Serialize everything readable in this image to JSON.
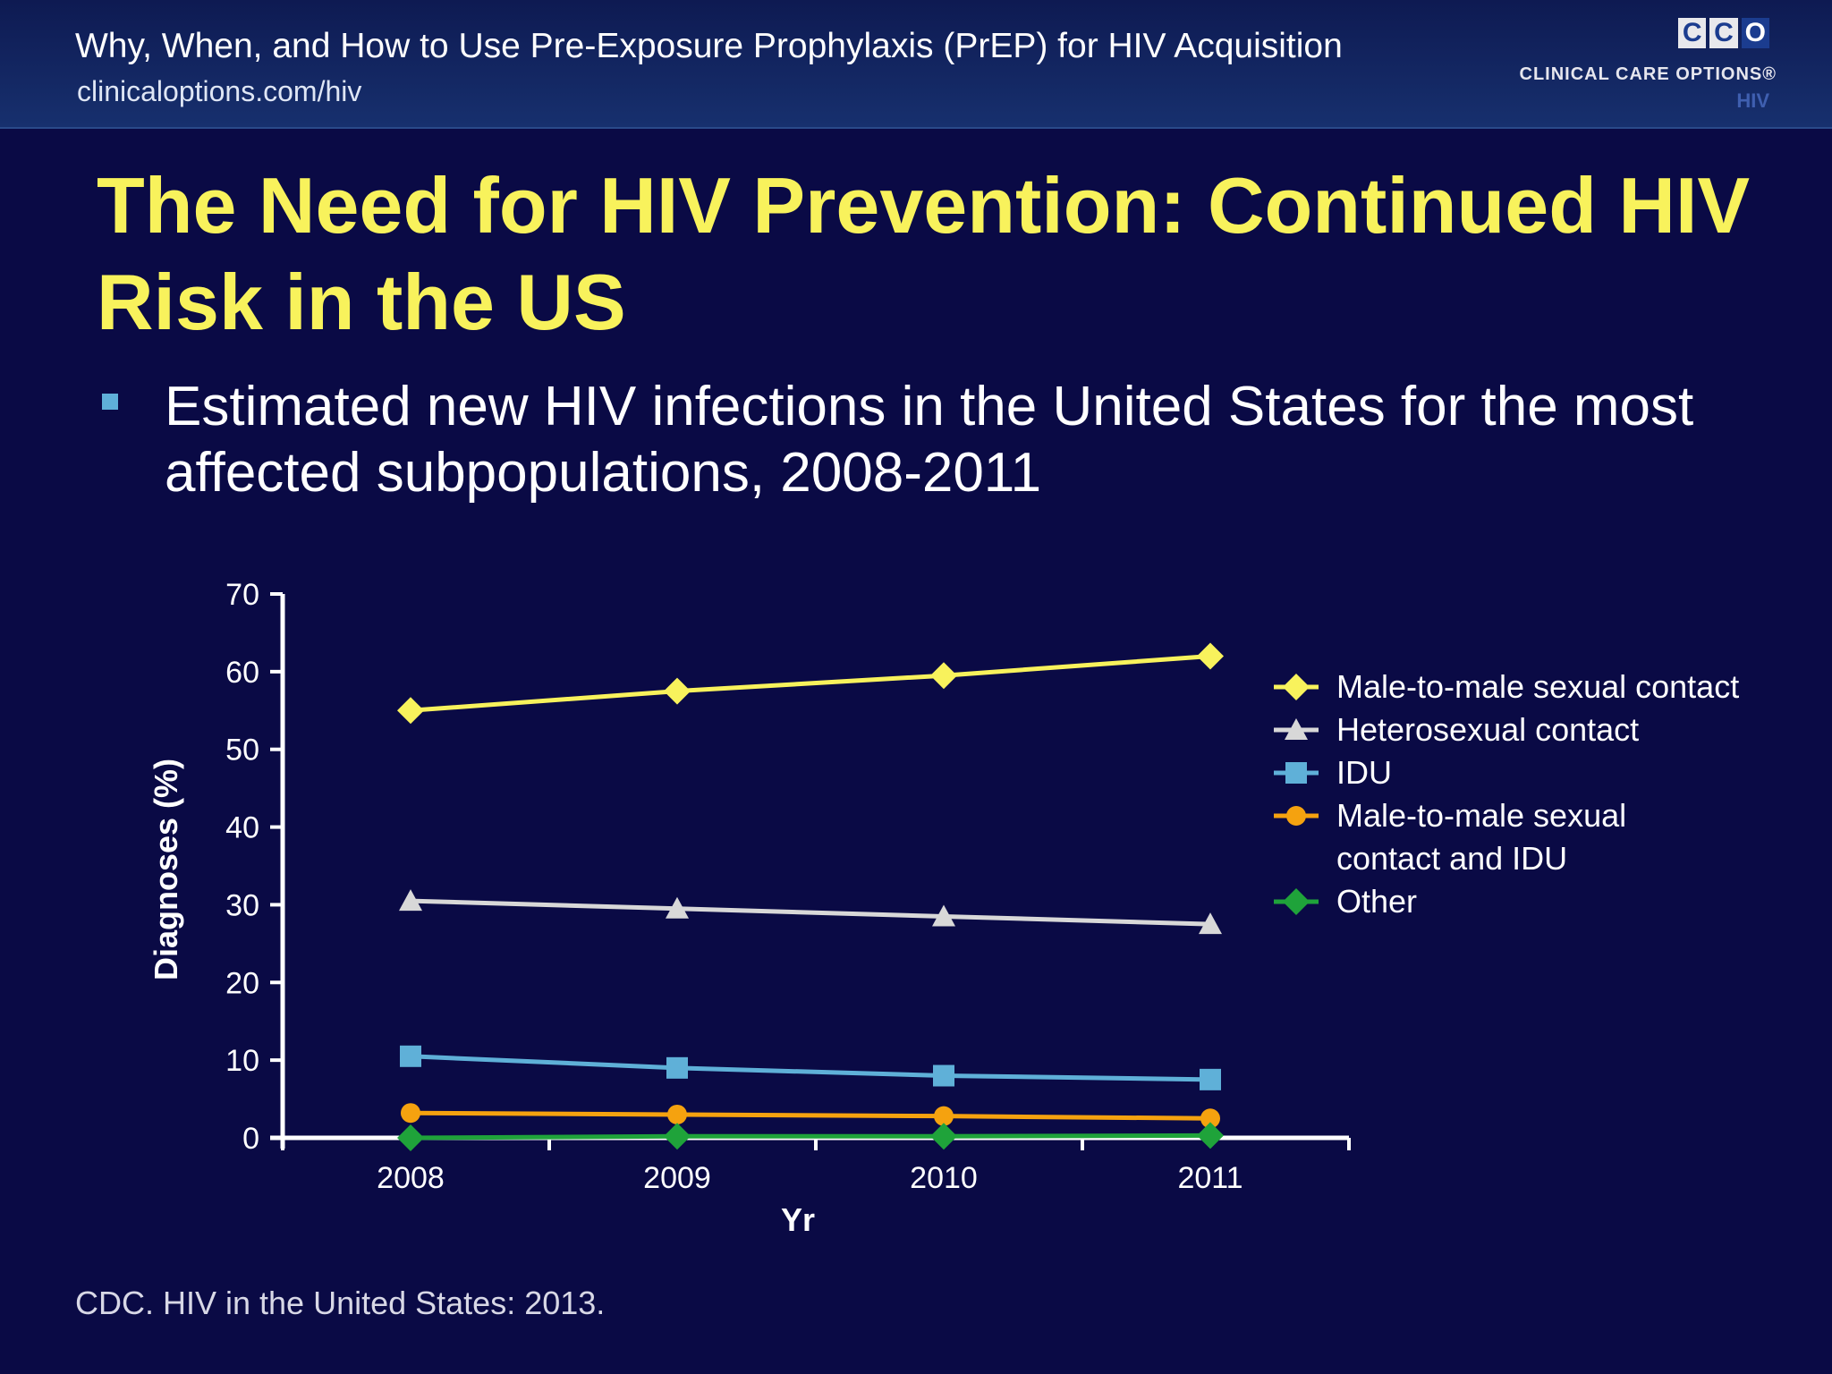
{
  "header": {
    "title": "Why, When, and How to Use Pre-Exposure Prophylaxis (PrEP) for HIV Acquisition",
    "url": "clinicaloptions.com/hiv",
    "logo_letters": [
      "C",
      "C",
      "O"
    ],
    "logo_text": "CLINICAL CARE OPTIONS®",
    "logo_sub": "HIV"
  },
  "slide": {
    "title": "The Need for HIV Prevention: Continued HIV Risk in the US",
    "bullet": "Estimated new HIV infections in the United States for the most affected subpopulations, 2008-2011",
    "source": "CDC. HIV in the United States: 2013."
  },
  "colors": {
    "title_yellow": "#f8f25c",
    "background": "#0a0a45",
    "bullet": "#5fb0d8"
  },
  "chart_data": {
    "type": "line",
    "title": "",
    "xlabel": "Yr",
    "ylabel": "Diagnoses (%)",
    "x": [
      "2008",
      "2009",
      "2010",
      "2011"
    ],
    "ylim": [
      0,
      70
    ],
    "yticks": [
      0,
      10,
      20,
      30,
      40,
      50,
      60,
      70
    ],
    "grid": false,
    "legend_position": "right",
    "series": [
      {
        "name": "Male-to-male sexual contact",
        "values": [
          55,
          57.5,
          59.5,
          62
        ],
        "color": "#f8f25c",
        "marker": "diamond"
      },
      {
        "name": "Heterosexual contact",
        "values": [
          30.5,
          29.5,
          28.5,
          27.5
        ],
        "color": "#d8d8d8",
        "marker": "triangle"
      },
      {
        "name": "IDU",
        "values": [
          10.5,
          9,
          8,
          7.5
        ],
        "color": "#5fb0d8",
        "marker": "square"
      },
      {
        "name": "Male-to-male sexual contact and IDU",
        "legend_lines": [
          "Male-to-male sexual",
          "contact and IDU"
        ],
        "values": [
          3.2,
          3,
          2.8,
          2.5
        ],
        "color": "#f5a20f",
        "marker": "circle"
      },
      {
        "name": "Other",
        "values": [
          0,
          0.2,
          0.2,
          0.3
        ],
        "color": "#1fa33a",
        "marker": "diamond"
      }
    ]
  }
}
